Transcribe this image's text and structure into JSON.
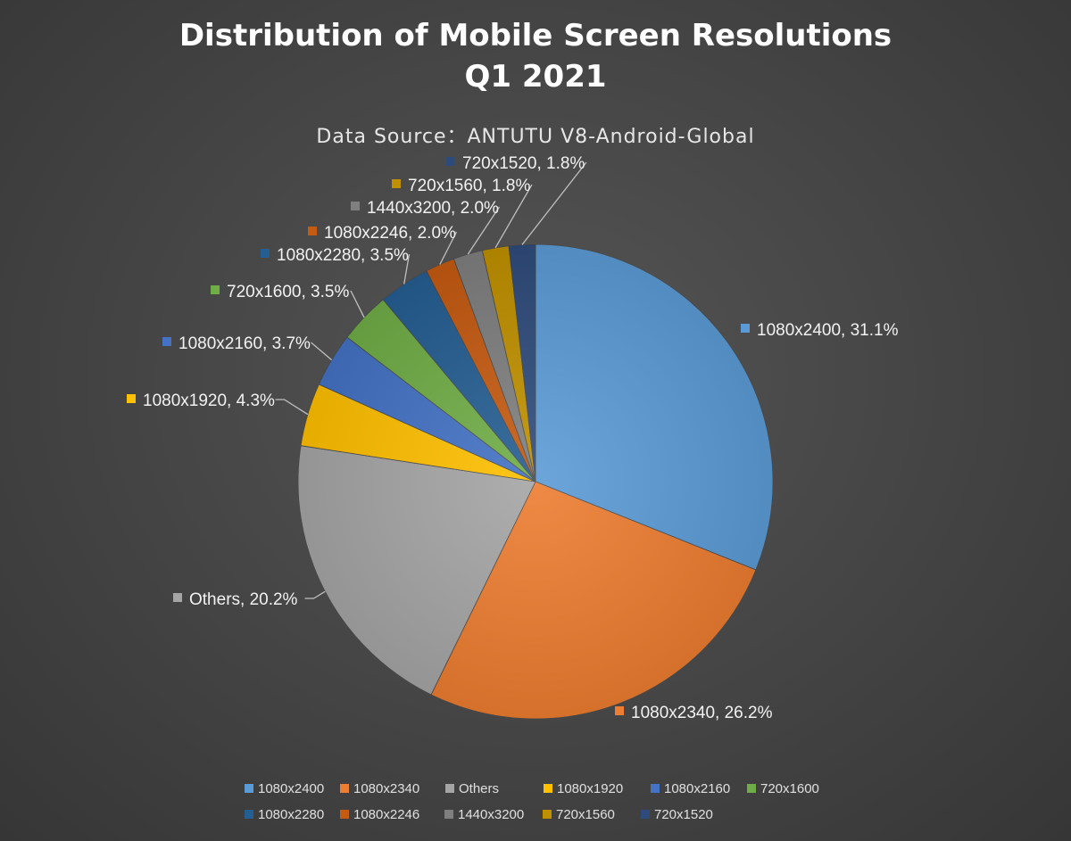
{
  "chart_data": {
    "type": "pie",
    "title": "Distribution of Mobile Screen Resolutions",
    "title_line2": "Q1 2021",
    "subtitle": "Data Source：ANTUTU V8-Android-Global",
    "unit": "%",
    "legend_position": "bottom",
    "slices": [
      {
        "name": "1080x2400",
        "value": 31.1,
        "label": "1080x2400, 31.1%",
        "color": "#5b9bd5"
      },
      {
        "name": "1080x2340",
        "value": 26.2,
        "label": "1080x2340, 26.2%",
        "color": "#ed7d31"
      },
      {
        "name": "Others",
        "value": 20.2,
        "label": "Others, 20.2%",
        "color": "#a5a5a5"
      },
      {
        "name": "1080x1920",
        "value": 4.3,
        "label": "1080x1920, 4.3%",
        "color": "#ffc000"
      },
      {
        "name": "1080x2160",
        "value": 3.7,
        "label": "1080x2160, 3.7%",
        "color": "#4472c4"
      },
      {
        "name": "720x1600",
        "value": 3.5,
        "label": "720x1600, 3.5%",
        "color": "#70ad47"
      },
      {
        "name": "1080x2280",
        "value": 3.5,
        "label": "1080x2280, 3.5%",
        "color": "#255e91"
      },
      {
        "name": "1080x2246",
        "value": 2.0,
        "label": "1080x2246, 2.0%",
        "color": "#c55a11"
      },
      {
        "name": "1440x3200",
        "value": 2.0,
        "label": "1440x3200, 2.0%",
        "color": "#7f7f7f"
      },
      {
        "name": "720x1560",
        "value": 1.8,
        "label": "720x1560, 1.8%",
        "color": "#bf9000"
      },
      {
        "name": "720x1520",
        "value": 1.8,
        "label": "720x1520, 1.8%",
        "color": "#2f4b7c"
      }
    ]
  }
}
